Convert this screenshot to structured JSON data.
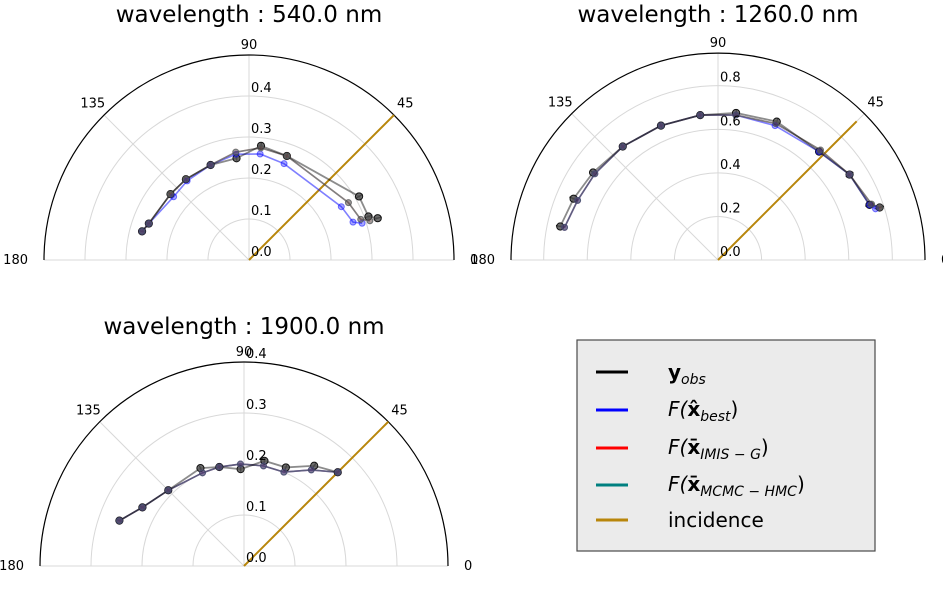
{
  "chart_data": [
    {
      "type": "polar_line",
      "title": "wavelength : 540.0 nm",
      "theta_ticks": [
        "0",
        "45",
        "90",
        "135",
        "180"
      ],
      "r_ticks": [
        "0.0",
        "0.1",
        "0.2",
        "0.3",
        "0.4"
      ],
      "rlim": [
        0,
        0.5
      ],
      "theta_range_deg": [
        0,
        180
      ],
      "incidence": {
        "angle_deg": 45,
        "length": 0.5
      },
      "angles_deg": [
        165,
        160,
        140,
        128,
        112,
        97,
        84,
        70,
        30,
        20,
        18
      ],
      "series": [
        {
          "key": "obs",
          "values": [
            0.27,
            0.26,
            0.25,
            0.25,
            0.25,
            0.25,
            0.28,
            0.27,
            0.31,
            0.31,
            0.33
          ],
          "errors": [
            0.008,
            0.008,
            0.006,
            0.006,
            0.006,
            0.006,
            0.008,
            0.008,
            0.01,
            0.01,
            0.01
          ]
        },
        {
          "key": "best",
          "values": [
            0.27,
            0.26,
            0.24,
            0.245,
            0.25,
            0.26,
            0.26,
            0.25,
            0.26,
            0.27,
            0.29
          ]
        },
        {
          "key": "imis",
          "values": [
            0.27,
            0.26,
            0.25,
            0.25,
            0.25,
            0.265,
            0.275,
            0.27,
            0.28,
            0.29,
            0.31
          ]
        },
        {
          "key": "mcmc",
          "values": [
            0.27,
            0.26,
            0.25,
            0.25,
            0.25,
            0.265,
            0.275,
            0.27,
            0.28,
            0.29,
            0.31
          ]
        }
      ]
    },
    {
      "type": "polar_line",
      "title": "wavelength : 1260.0 nm",
      "theta_ticks": [
        "0",
        "45",
        "90",
        "135",
        "180"
      ],
      "r_ticks": [
        "0.0",
        "0.2",
        "0.4",
        "0.6",
        "0.8"
      ],
      "rlim": [
        0,
        0.95
      ],
      "theta_range_deg": [
        0,
        180
      ],
      "incidence": {
        "angle_deg": 45,
        "length": 0.9
      },
      "angles_deg": [
        168,
        157,
        145,
        130,
        113,
        97,
        83,
        67,
        47,
        33,
        20,
        18
      ],
      "series": [
        {
          "key": "obs",
          "values": [
            0.74,
            0.72,
            0.7,
            0.68,
            0.67,
            0.67,
            0.68,
            0.69,
            0.68,
            0.72,
            0.74,
            0.78
          ],
          "errors": [
            0.02,
            0.02,
            0.015,
            0.015,
            0.015,
            0.015,
            0.015,
            0.015,
            0.015,
            0.02,
            0.02,
            0.02
          ]
        },
        {
          "key": "best",
          "values": [
            0.72,
            0.7,
            0.69,
            0.68,
            0.67,
            0.67,
            0.67,
            0.67,
            0.68,
            0.72,
            0.74,
            0.76
          ]
        },
        {
          "key": "imis",
          "values": [
            0.72,
            0.7,
            0.69,
            0.68,
            0.67,
            0.67,
            0.67,
            0.68,
            0.69,
            0.72,
            0.75,
            0.78
          ]
        },
        {
          "key": "mcmc",
          "values": [
            0.72,
            0.7,
            0.69,
            0.68,
            0.67,
            0.67,
            0.67,
            0.68,
            0.69,
            0.72,
            0.75,
            0.78
          ]
        }
      ]
    },
    {
      "type": "polar_line",
      "title": "wavelength : 1900.0 nm",
      "theta_ticks": [
        "0",
        "45",
        "90",
        "135",
        "180"
      ],
      "r_ticks": [
        "0.0",
        "0.1",
        "0.2",
        "0.3",
        "0.4"
      ],
      "rlim": [
        0,
        0.4
      ],
      "theta_range_deg": [
        0,
        180
      ],
      "incidence": {
        "angle_deg": 45,
        "length": 0.4
      },
      "angles_deg": [
        160,
        150,
        135,
        114,
        104,
        92,
        79,
        67,
        55,
        45
      ],
      "series": [
        {
          "key": "obs",
          "values": [
            0.26,
            0.23,
            0.21,
            0.21,
            0.2,
            0.19,
            0.21,
            0.21,
            0.24,
            0.26
          ],
          "errors": [
            0.006,
            0.006,
            0.005,
            0.005,
            0.005,
            0.005,
            0.005,
            0.005,
            0.006,
            0.006
          ]
        },
        {
          "key": "best",
          "values": [
            0.26,
            0.23,
            0.21,
            0.2,
            0.2,
            0.2,
            0.2,
            0.2,
            0.23,
            0.26
          ]
        },
        {
          "key": "imis",
          "values": [
            0.26,
            0.23,
            0.21,
            0.2,
            0.2,
            0.2,
            0.2,
            0.2,
            0.23,
            0.26
          ]
        },
        {
          "key": "mcmc",
          "values": [
            0.26,
            0.23,
            0.21,
            0.2,
            0.2,
            0.2,
            0.2,
            0.2,
            0.23,
            0.26
          ]
        }
      ]
    }
  ],
  "legend": {
    "location": "lower-right",
    "items": [
      {
        "key": "obs",
        "symbol": "y",
        "sub": "obs",
        "color": "#000000"
      },
      {
        "key": "best",
        "prefix": "F(",
        "symbol": "x̂",
        "sub": "best",
        "suffix": ")",
        "color": "#0000ff"
      },
      {
        "key": "imis",
        "prefix": "F(",
        "symbol": "x̄",
        "sub": "IMIS − G",
        "suffix": ")",
        "color": "#ff0000"
      },
      {
        "key": "mcmc",
        "prefix": "F(",
        "symbol": "x̄",
        "sub": "MCMC − HMC",
        "suffix": ")",
        "color": "#008080"
      },
      {
        "key": "inc",
        "label": "incidence",
        "color": "#b8860b"
      }
    ]
  },
  "colors": {
    "obs": "#000000",
    "best": "#0000ff",
    "imis": "#ff0000",
    "mcmc": "#008080",
    "incidence": "#b8860b",
    "grid": "#d8d8d8",
    "legend_bg": "#ebebeb"
  }
}
